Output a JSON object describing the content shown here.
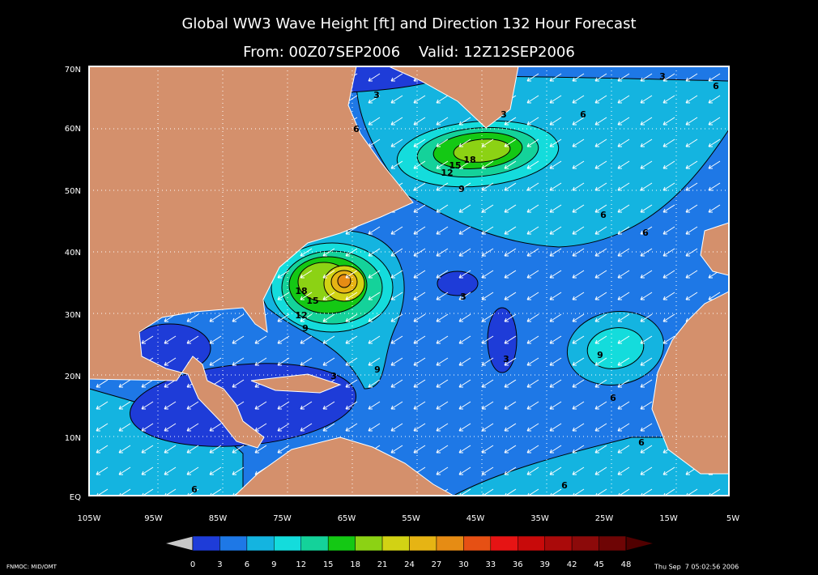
{
  "header": {
    "title": "Global WW3 Wave Height [ft] and Direction 132 Hour Forecast",
    "subtitle": "From: 00Z07SEP2006    Valid: 12Z12SEP2006"
  },
  "map": {
    "lat_labels": [
      "70N",
      "60N",
      "50N",
      "40N",
      "30N",
      "20N",
      "10N",
      "EQ"
    ],
    "lon_labels": [
      "105W",
      "95W",
      "85W",
      "75W",
      "65W",
      "55W",
      "45W",
      "35W",
      "25W",
      "15W",
      "5W"
    ],
    "contour_labels": [
      3,
      6,
      3,
      6,
      3,
      6,
      18,
      15,
      12,
      9,
      6,
      6,
      18,
      15,
      12,
      9,
      3,
      3,
      9,
      6,
      3,
      9,
      6,
      6,
      6
    ]
  },
  "colorbar": {
    "labels": [
      0,
      3,
      6,
      9,
      12,
      15,
      18,
      21,
      24,
      27,
      30,
      33,
      36,
      39,
      42,
      45,
      48
    ],
    "colors": [
      "#1e3cd8",
      "#1e78e6",
      "#14b4e0",
      "#14dcdc",
      "#14d29a",
      "#14c814",
      "#8cd214",
      "#d2d214",
      "#e6b414",
      "#e68c14",
      "#e65014",
      "#e61414",
      "#c80a0a",
      "#aa0a0a",
      "#8c0a0a",
      "#6e0505"
    ],
    "below_color": "#c8c8c8",
    "above_color": "#500000"
  },
  "footer": {
    "left": "FNMOC: MID/OMT",
    "right": "Thu Sep  7 05:02:56 2006"
  }
}
